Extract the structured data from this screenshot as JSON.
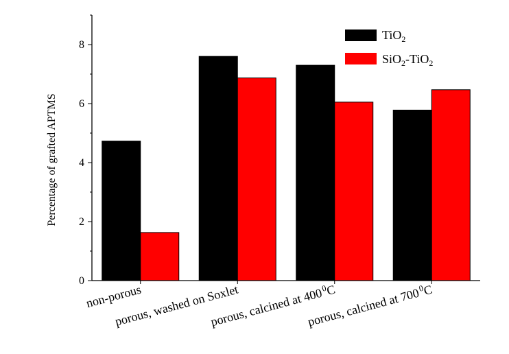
{
  "chart_data": {
    "type": "bar",
    "categories": [
      "non-porous",
      "porous, washed on Soxlet",
      "porous, calcined at 400",
      "porous, calcined at 700"
    ],
    "category_superscripts": [
      "",
      "",
      "0",
      "0"
    ],
    "category_suffixes": [
      "",
      "",
      "C",
      "C"
    ],
    "series": [
      {
        "name": "TiO2",
        "name_main": "TiO",
        "name_sub": "2",
        "color": "#000000",
        "values": [
          4.73,
          7.6,
          7.3,
          5.78
        ]
      },
      {
        "name": "SiO2-TiO2",
        "name_parts": [
          "SiO",
          "2",
          "-TiO",
          "2"
        ],
        "color": "#ff0000",
        "values": [
          1.63,
          6.87,
          6.05,
          6.47
        ]
      }
    ],
    "ylabel": "Percentage of grafted APTMS",
    "xlabel": "",
    "ylim": [
      0,
      9
    ],
    "yticks": [
      0,
      2,
      4,
      6,
      8
    ],
    "legend": "top-right",
    "grid": false
  }
}
